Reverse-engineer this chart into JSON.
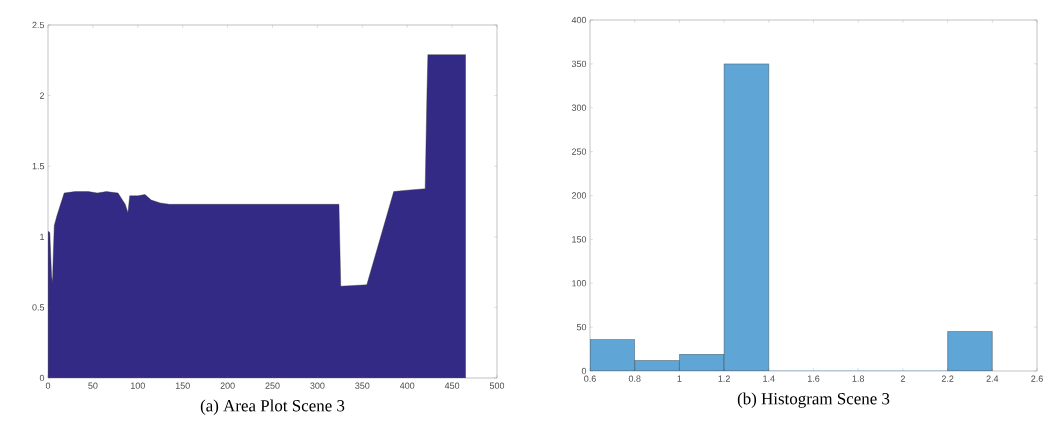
{
  "chart_data": [
    {
      "type": "area",
      "title": "(a) Area Plot Scene 3",
      "color": "#332a85",
      "x": [
        0,
        2,
        4,
        5,
        6,
        7,
        10,
        15,
        18,
        30,
        45,
        55,
        65,
        78,
        82,
        86,
        89,
        91,
        100,
        108,
        115,
        125,
        135,
        324,
        326,
        355,
        385,
        400,
        420,
        422,
        423,
        465
      ],
      "values": [
        1.04,
        1.03,
        0.72,
        0.68,
        0.9,
        1.08,
        1.15,
        1.25,
        1.31,
        1.32,
        1.32,
        1.31,
        1.32,
        1.31,
        1.27,
        1.23,
        1.17,
        1.29,
        1.29,
        1.3,
        1.26,
        1.24,
        1.23,
        1.23,
        0.65,
        0.66,
        1.32,
        1.33,
        1.34,
        2.02,
        2.29,
        2.29
      ],
      "xlim": [
        0,
        500
      ],
      "ylim": [
        0,
        2.5
      ],
      "xticks": [
        0,
        50,
        100,
        150,
        200,
        250,
        300,
        350,
        400,
        450,
        500
      ],
      "yticks": [
        0,
        0.5,
        1,
        1.5,
        2,
        2.5
      ]
    },
    {
      "type": "histogram",
      "title": "(b) Histogram Scene 3",
      "color": "#5fa5d6",
      "bins": [
        0.6,
        0.8,
        1.0,
        1.2,
        1.4,
        1.6,
        1.8,
        2.0,
        2.2,
        2.4
      ],
      "values": [
        36,
        12,
        19,
        350,
        0,
        0,
        0,
        0,
        45
      ],
      "xlim": [
        0.6,
        2.6
      ],
      "ylim": [
        0,
        400
      ],
      "xticks": [
        0.6,
        0.8,
        1,
        1.2,
        1.4,
        1.6,
        1.8,
        2,
        2.2,
        2.4,
        2.6
      ],
      "yticks": [
        0,
        50,
        100,
        150,
        200,
        250,
        300,
        350,
        400
      ]
    }
  ]
}
